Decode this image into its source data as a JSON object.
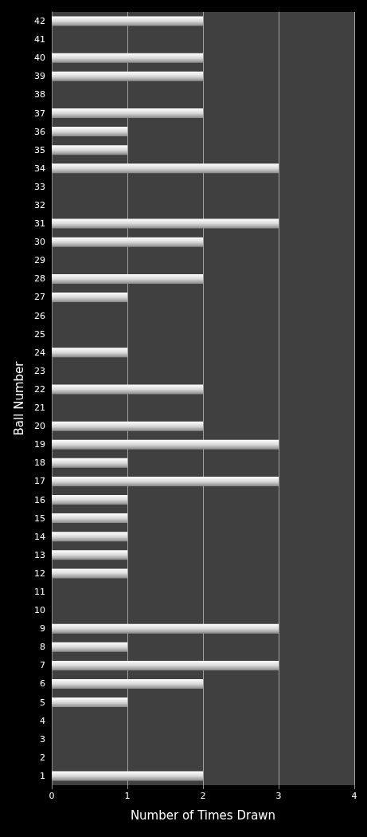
{
  "chart_data": {
    "type": "bar",
    "orientation": "horizontal",
    "xlabel": "Number of Times Drawn",
    "ylabel": "Ball Number",
    "categories": [
      "42",
      "41",
      "40",
      "39",
      "38",
      "37",
      "36",
      "35",
      "34",
      "33",
      "32",
      "31",
      "30",
      "29",
      "28",
      "27",
      "26",
      "25",
      "24",
      "23",
      "22",
      "21",
      "20",
      "19",
      "18",
      "17",
      "16",
      "15",
      "14",
      "13",
      "12",
      "11",
      "10",
      "9",
      "8",
      "7",
      "6",
      "5",
      "4",
      "3",
      "2",
      "1"
    ],
    "values": [
      2,
      0,
      2,
      2,
      0,
      2,
      1,
      1,
      3,
      0,
      0,
      3,
      2,
      0,
      2,
      1,
      0,
      0,
      1,
      0,
      2,
      0,
      2,
      3,
      1,
      3,
      1,
      1,
      1,
      1,
      1,
      0,
      0,
      3,
      1,
      3,
      2,
      1,
      0,
      0,
      0,
      2
    ],
    "color": "#d9d9d9",
    "xlim": [
      0,
      4
    ],
    "xticks": [
      0,
      1,
      2,
      3,
      4
    ],
    "grid": "x"
  }
}
